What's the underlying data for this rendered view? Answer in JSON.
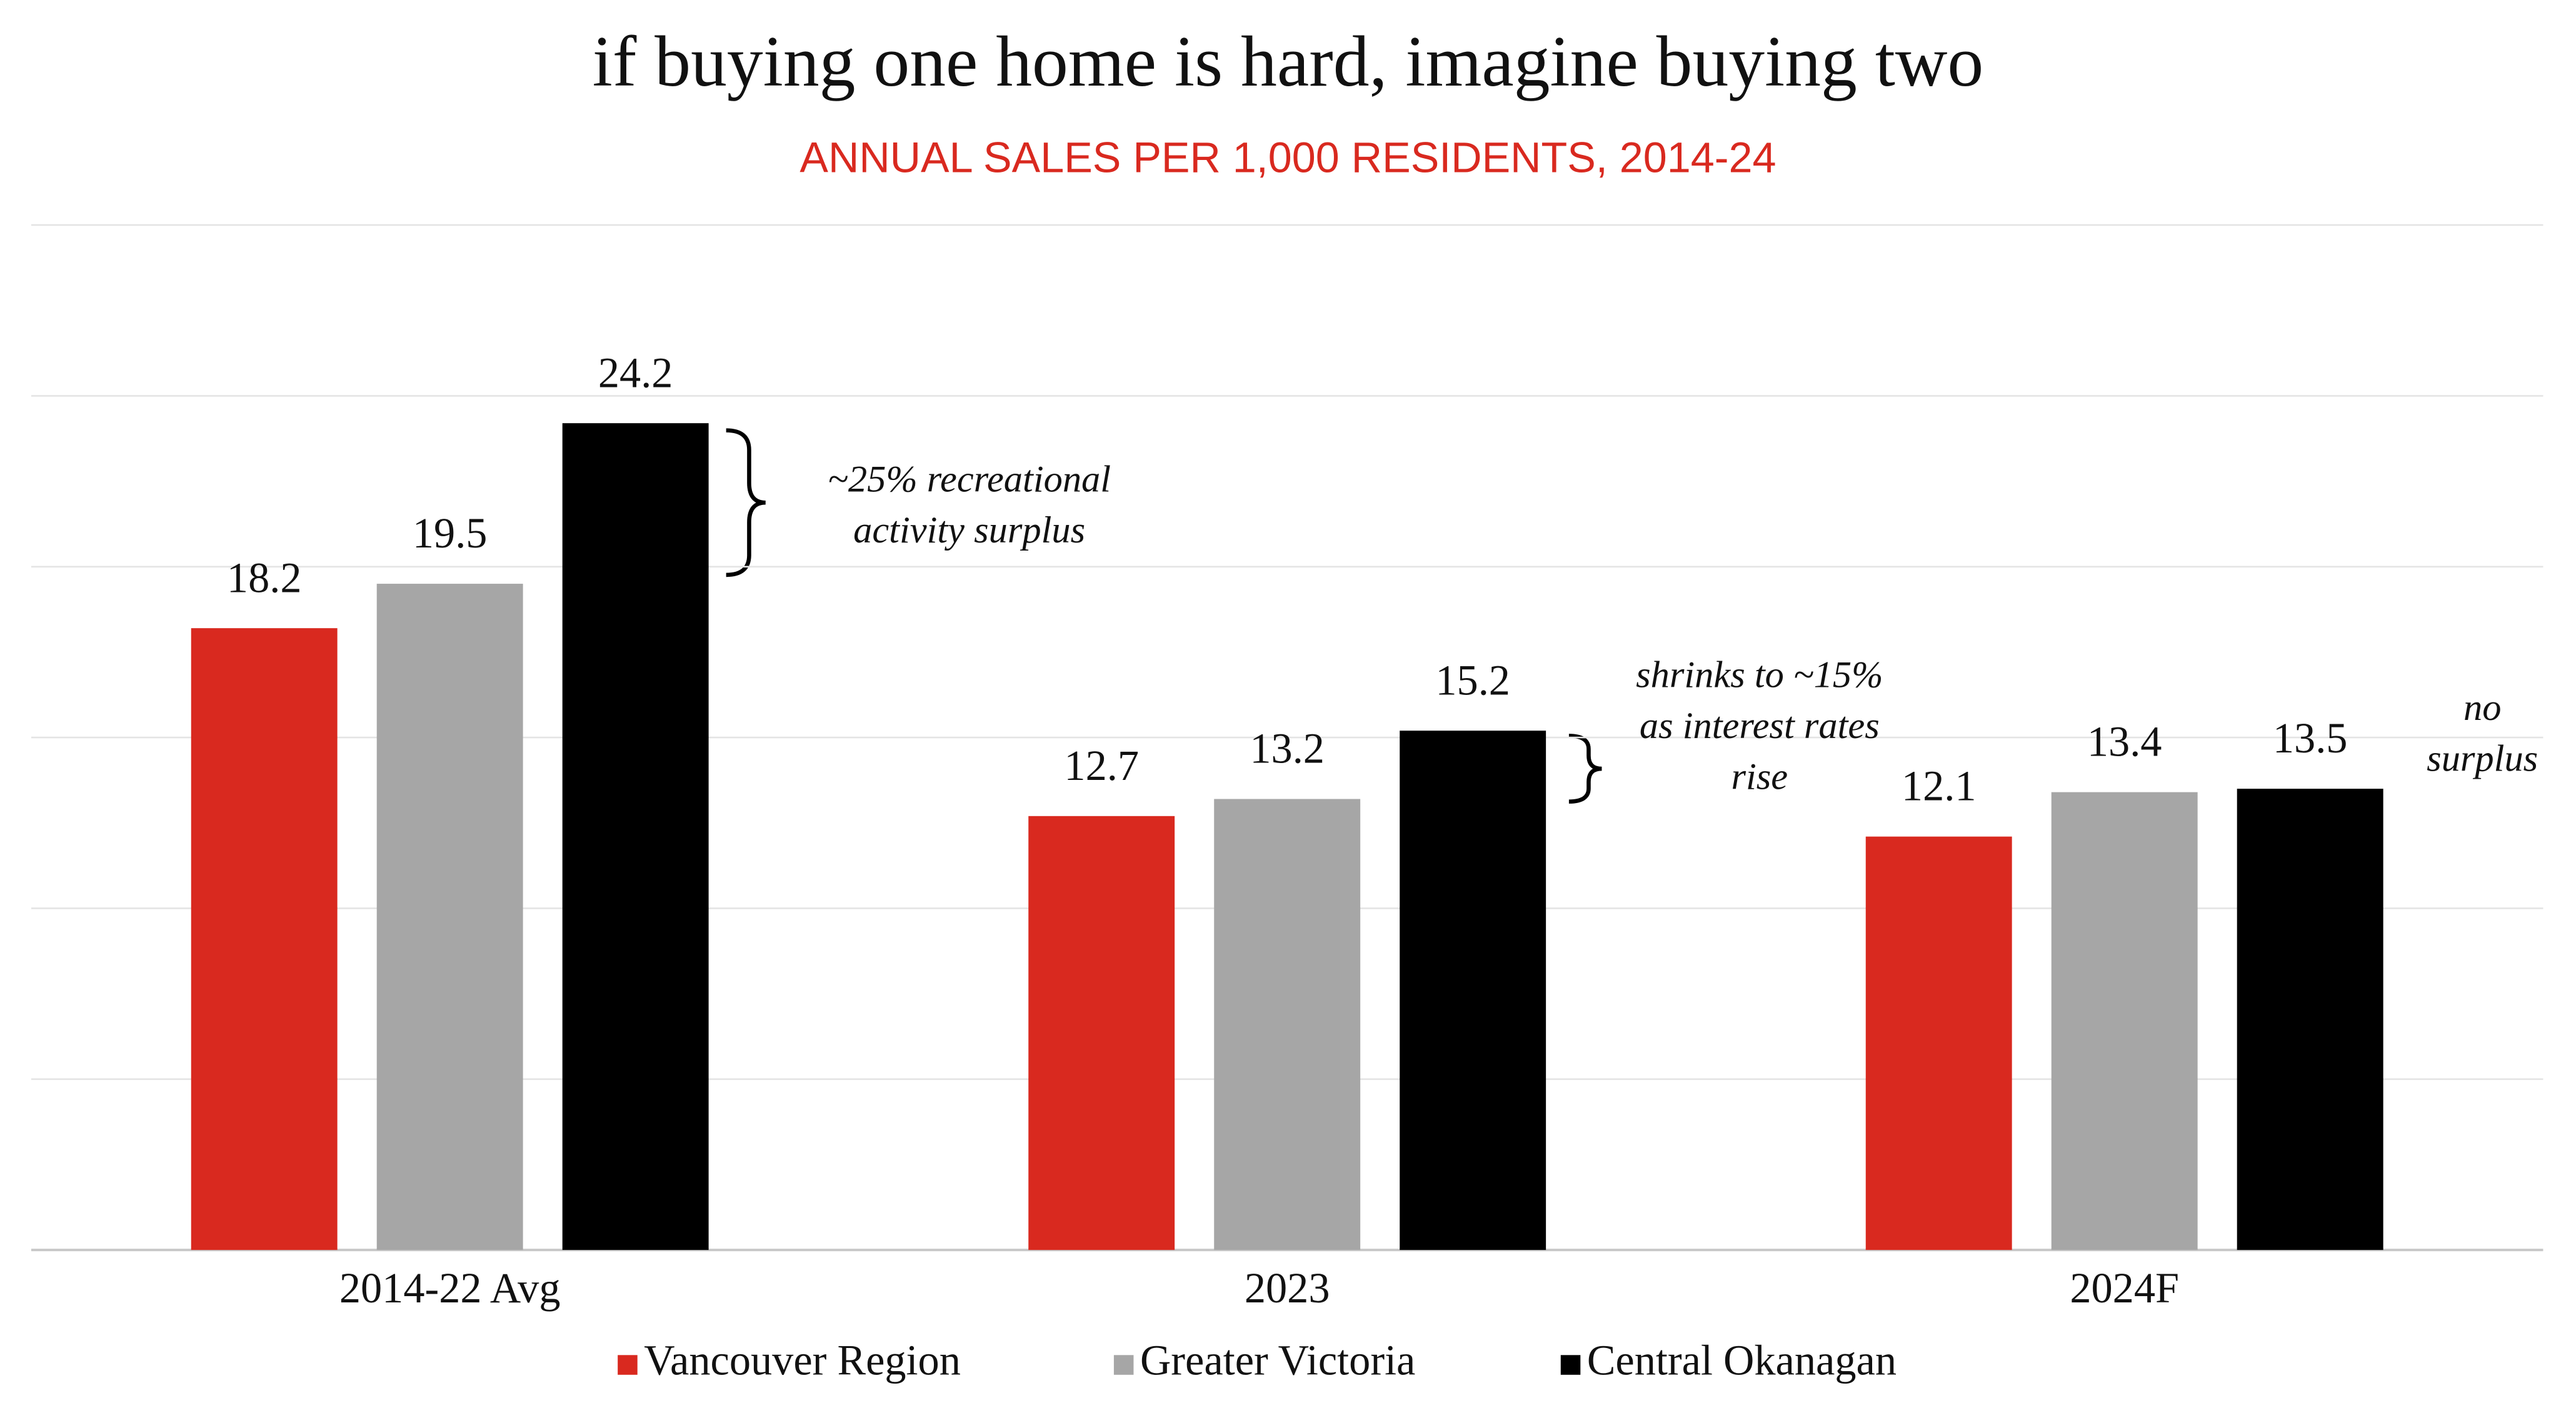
{
  "chart_data": {
    "type": "bar",
    "title": "if buying one home is hard, imagine buying two",
    "subtitle": "ANNUAL SALES PER 1,000 RESIDENTS, 2014-24",
    "categories": [
      "2014-22 Avg",
      "2023",
      "2024F"
    ],
    "series": [
      {
        "name": "Vancouver Region",
        "color": "#d9291f",
        "values": [
          18.2,
          12.7,
          12.1
        ]
      },
      {
        "name": "Greater Victoria",
        "color": "#a6a6a6",
        "values": [
          19.5,
          13.2,
          13.4
        ]
      },
      {
        "name": "Central Okanagan",
        "color": "#000000",
        "values": [
          24.2,
          15.2,
          13.5
        ]
      }
    ],
    "ylim": [
      0,
      30
    ],
    "yticks": [
      0,
      5,
      10,
      15,
      20,
      25,
      30
    ],
    "grid": true,
    "annotations": [
      [
        "~25% recreational",
        "activity surplus"
      ],
      [
        "shrinks to ~15%",
        "as interest rates",
        "rise"
      ],
      [
        "no",
        "surplus"
      ]
    ]
  }
}
